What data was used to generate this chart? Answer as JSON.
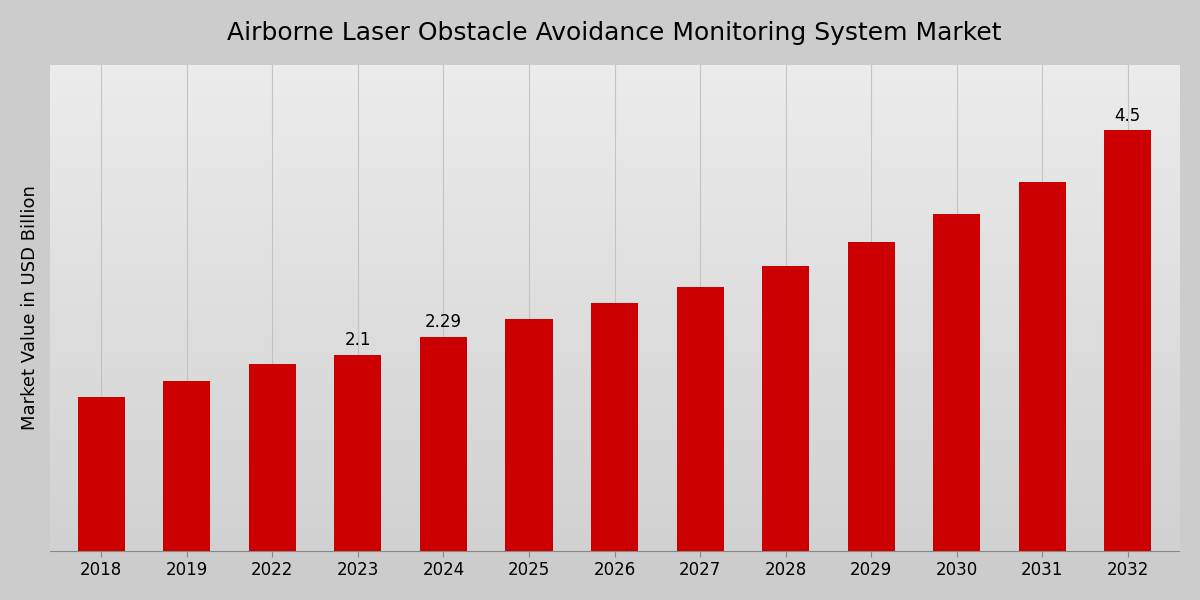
{
  "title": "Airborne Laser Obstacle Avoidance Monitoring System Market",
  "ylabel": "Market Value in USD Billion",
  "categories": [
    "2018",
    "2019",
    "2022",
    "2023",
    "2024",
    "2025",
    "2026",
    "2027",
    "2028",
    "2029",
    "2030",
    "2031",
    "2032"
  ],
  "values": [
    1.65,
    1.82,
    2.0,
    2.1,
    2.29,
    2.48,
    2.65,
    2.82,
    3.05,
    3.3,
    3.6,
    3.95,
    4.5
  ],
  "bar_color": "#CC0000",
  "annotated_bars": {
    "2023": "2.1",
    "2024": "2.29",
    "2032": "4.5"
  },
  "ylim": [
    0,
    5.2
  ],
  "title_fontsize": 18,
  "ylabel_fontsize": 13,
  "tick_fontsize": 12,
  "annotation_fontsize": 12,
  "grid_color": "#c0c0c0",
  "bar_width": 0.55,
  "bg_color_top": "#ececec",
  "bg_color_bottom": "#d2d2d2",
  "fig_bg": "#cccccc"
}
